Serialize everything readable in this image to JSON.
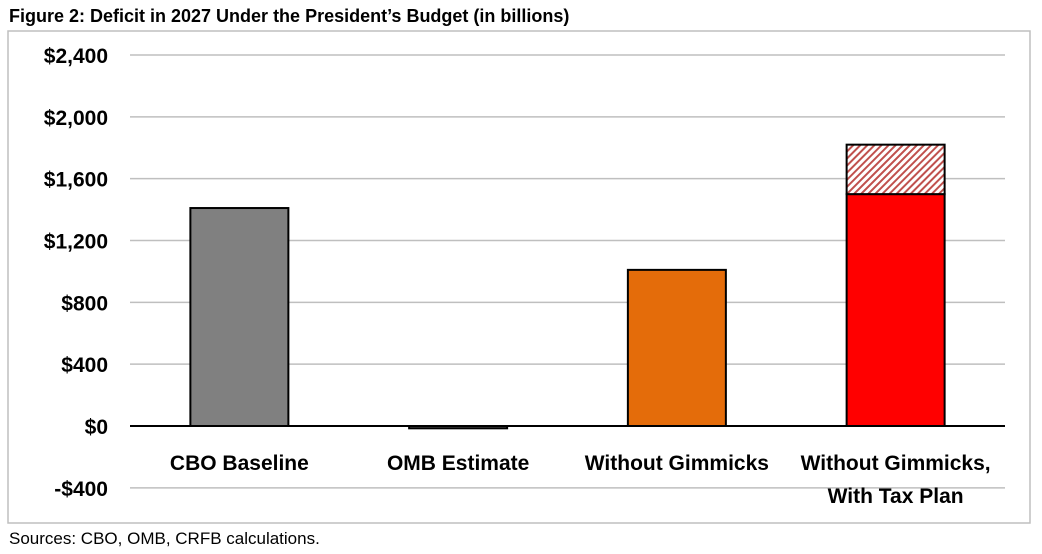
{
  "title": "Figure 2: Deficit in 2027 Under the President’s Budget (in billions)",
  "sources": "Sources: CBO, OMB, CRFB calculations.",
  "chart_data": {
    "type": "bar",
    "title": "Figure 2: Deficit in 2027 Under the President’s Budget (in billions)",
    "xlabel": "",
    "ylabel": "",
    "ylim": [
      -400,
      2400
    ],
    "yticks": [
      -400,
      0,
      400,
      800,
      1200,
      1600,
      2000,
      2400
    ],
    "ytick_labels": [
      "-$400",
      "$0",
      "$400",
      "$800",
      "$1,200",
      "$1,600",
      "$2,000",
      "$2,400"
    ],
    "grid": true,
    "categories": [
      [
        "CBO Baseline"
      ],
      [
        "OMB Estimate"
      ],
      [
        "Without Gimmicks"
      ],
      [
        "Without Gimmicks,",
        "With Tax Plan"
      ]
    ],
    "bars": [
      {
        "category": "CBO Baseline",
        "segments": [
          {
            "value": 1410,
            "color": "#808080",
            "pattern": "solid"
          }
        ]
      },
      {
        "category": "OMB Estimate",
        "segments": [
          {
            "value": -15,
            "color": "#808080",
            "pattern": "solid"
          }
        ]
      },
      {
        "category": "Without Gimmicks",
        "segments": [
          {
            "value": 1010,
            "color": "#E46C0A",
            "pattern": "solid"
          }
        ]
      },
      {
        "category": "Without Gimmicks, With Tax Plan",
        "segments": [
          {
            "value": 1500,
            "color": "#FF0000",
            "pattern": "solid"
          },
          {
            "value": 320,
            "color": "#C0504D",
            "pattern": "hatched"
          }
        ]
      }
    ]
  }
}
